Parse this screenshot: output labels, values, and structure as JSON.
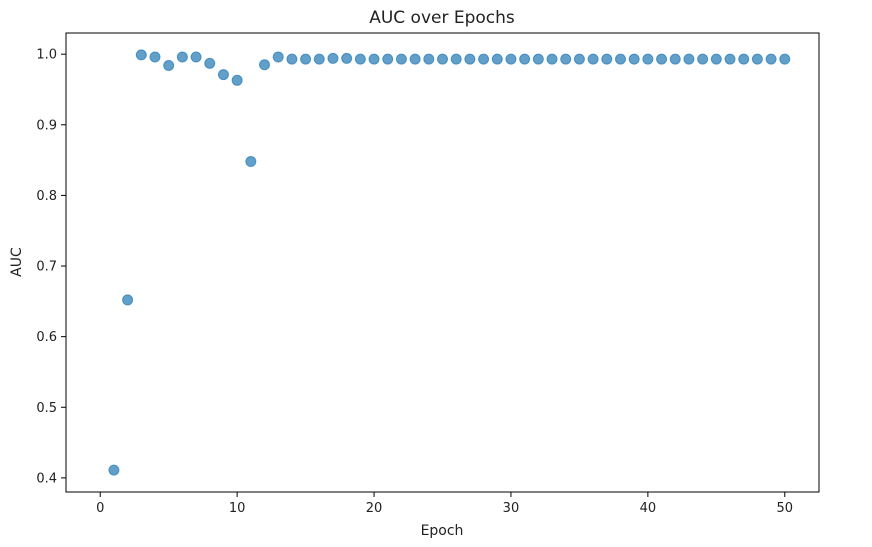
{
  "chart_data": {
    "type": "scatter",
    "title": "AUC over Epochs",
    "xlabel": "Epoch",
    "ylabel": "AUC",
    "xlim": [
      -2.5,
      52.5
    ],
    "ylim": [
      0.38,
      1.03
    ],
    "xticks": [
      0,
      10,
      20,
      30,
      40,
      50
    ],
    "yticks": [
      0.4,
      0.5,
      0.6,
      0.7,
      0.8,
      0.9,
      1.0
    ],
    "xtick_labels": [
      "0",
      "10",
      "20",
      "30",
      "40",
      "50"
    ],
    "ytick_labels": [
      "0.4",
      "0.5",
      "0.6",
      "0.7",
      "0.8",
      "0.9",
      "1.0"
    ],
    "grid": false,
    "legend": "none",
    "color": "#1f77b4",
    "alpha": 0.7,
    "series": [
      {
        "x": [
          1,
          2,
          3,
          4,
          5,
          6,
          7,
          8,
          9,
          10,
          11,
          12,
          13,
          14,
          15,
          16,
          17,
          18,
          19,
          20,
          21,
          22,
          23,
          24,
          25,
          26,
          27,
          28,
          29,
          30,
          31,
          32,
          33,
          34,
          35,
          36,
          37,
          38,
          39,
          40,
          41,
          42,
          43,
          44,
          45,
          46,
          47,
          48,
          49,
          50
        ],
        "y": [
          0.411,
          0.652,
          0.999,
          0.996,
          0.984,
          0.996,
          0.996,
          0.987,
          0.971,
          0.963,
          0.848,
          0.985,
          0.996,
          0.993,
          0.993,
          0.993,
          0.994,
          0.994,
          0.993,
          0.993,
          0.993,
          0.993,
          0.993,
          0.993,
          0.993,
          0.993,
          0.993,
          0.993,
          0.993,
          0.993,
          0.993,
          0.993,
          0.993,
          0.993,
          0.993,
          0.993,
          0.993,
          0.993,
          0.993,
          0.993,
          0.993,
          0.993,
          0.993,
          0.993,
          0.993,
          0.993,
          0.993,
          0.993,
          0.993,
          0.993
        ]
      }
    ]
  }
}
